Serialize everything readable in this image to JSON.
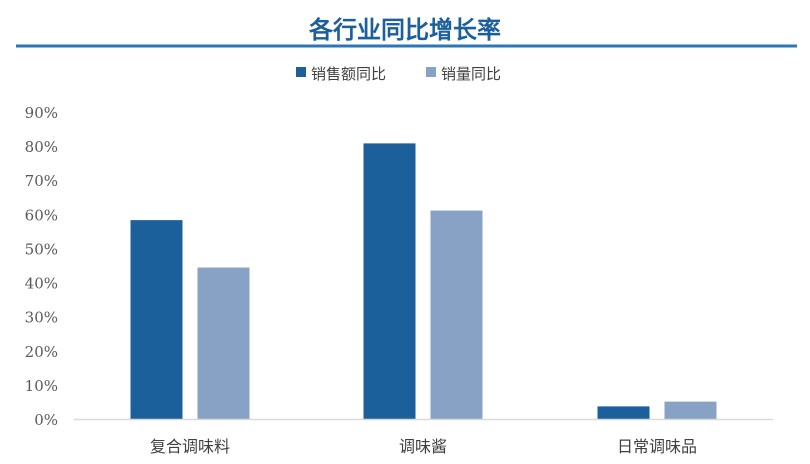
{
  "chart_data": {
    "type": "bar",
    "title": "各行业同比增长率",
    "categories": [
      "复合调味料",
      "调味酱",
      "日常调味品"
    ],
    "series": [
      {
        "name": "销售额同比",
        "values": [
          58.3,
          80.8,
          3.7
        ],
        "color": "#1B5F9B"
      },
      {
        "name": "销量同比",
        "values": [
          44.4,
          61.1,
          5.1
        ],
        "color": "#88A2C6"
      }
    ],
    "ylim": [
      0,
      90
    ],
    "yticks": [
      "0%",
      "10%",
      "20%",
      "30%",
      "40%",
      "50%",
      "60%",
      "70%",
      "80%",
      "90%"
    ],
    "unit": "%",
    "grid": false,
    "legend": "top-center",
    "title_color": "#1B5F9B",
    "rule_color": "#2E75B6"
  }
}
